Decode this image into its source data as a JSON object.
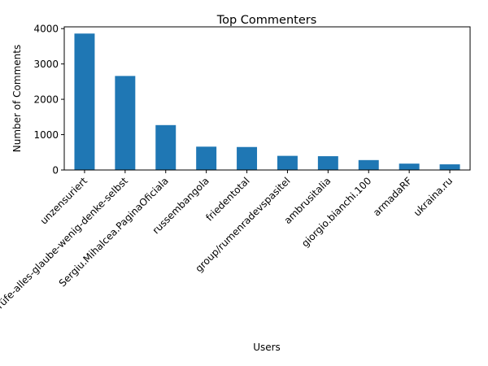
{
  "chart_data": {
    "type": "bar",
    "title": "Top Commenters",
    "xlabel": "Users",
    "ylabel": "Number of Comments",
    "ylim": [
      0,
      4050
    ],
    "yticks": [
      0,
      1000,
      2000,
      3000,
      4000
    ],
    "grid": false,
    "legend": "none",
    "bar_color": "#1f77b4",
    "categories": [
      "unzensuriert",
      "Prüfe-alles-glaube-wenig-denke-selbst",
      "Sergiu.Mihalcea.PaginaOficiala",
      "russembangola",
      "friedentotal",
      "group/rumenradevspasitel",
      "ambrusitalia",
      "giorgio.bianchi.100",
      "armadaRF",
      "ukraina.ru"
    ],
    "values": [
      3860,
      2660,
      1270,
      660,
      650,
      400,
      390,
      280,
      180,
      160
    ]
  }
}
